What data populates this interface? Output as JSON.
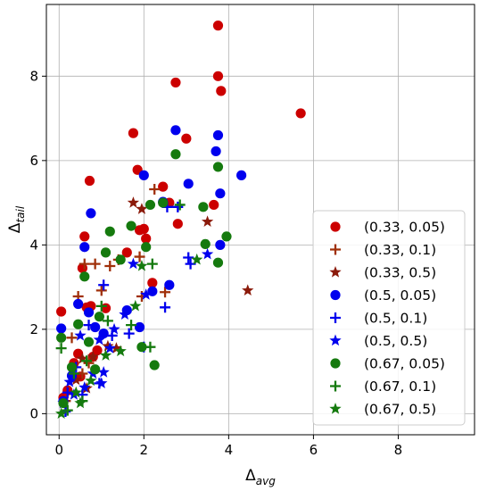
{
  "chart_data": {
    "type": "scatter",
    "xlabel": {
      "base": "Δ",
      "sub": "avg"
    },
    "ylabel": {
      "base": "Δ",
      "sub": "tail"
    },
    "xlim": [
      -0.3,
      9.8
    ],
    "ylim": [
      -0.5,
      9.7
    ],
    "xticks": [
      0,
      2,
      4,
      6,
      8
    ],
    "yticks": [
      0,
      2,
      4,
      6,
      8
    ],
    "grid": true,
    "legend_position": "lower-right",
    "series": [
      {
        "name": "(0.33, 0.05)",
        "color": "#cc0000",
        "marker": "circle",
        "points": [
          [
            0.05,
            2.42
          ],
          [
            0.1,
            0.38
          ],
          [
            0.2,
            0.55
          ],
          [
            0.35,
            1.2
          ],
          [
            0.45,
            1.42
          ],
          [
            0.5,
            0.88
          ],
          [
            0.55,
            3.45
          ],
          [
            0.6,
            4.2
          ],
          [
            0.65,
            2.52
          ],
          [
            0.72,
            5.52
          ],
          [
            0.75,
            2.55
          ],
          [
            0.8,
            1.35
          ],
          [
            0.9,
            1.5
          ],
          [
            1.1,
            2.5
          ],
          [
            1.6,
            3.82
          ],
          [
            1.75,
            6.65
          ],
          [
            1.85,
            5.78
          ],
          [
            1.9,
            4.35
          ],
          [
            2.0,
            4.38
          ],
          [
            2.05,
            4.15
          ],
          [
            2.2,
            3.1
          ],
          [
            2.45,
            5.38
          ],
          [
            2.6,
            5.0
          ],
          [
            2.75,
            7.85
          ],
          [
            2.8,
            4.5
          ],
          [
            3.0,
            6.52
          ],
          [
            3.65,
            4.95
          ],
          [
            3.75,
            8.0
          ],
          [
            3.75,
            9.2
          ],
          [
            3.82,
            7.65
          ],
          [
            5.7,
            7.12
          ]
        ]
      },
      {
        "name": "(0.33, 0.1)",
        "color": "#a0300a",
        "marker": "plus",
        "points": [
          [
            0.15,
            0.3
          ],
          [
            0.3,
            1.8
          ],
          [
            0.45,
            2.78
          ],
          [
            0.55,
            0.95
          ],
          [
            0.6,
            3.55
          ],
          [
            0.7,
            1.2
          ],
          [
            0.85,
            3.55
          ],
          [
            1.0,
            2.92
          ],
          [
            1.2,
            3.5
          ],
          [
            1.4,
            3.65
          ],
          [
            1.9,
            3.72
          ],
          [
            1.95,
            2.78
          ],
          [
            2.25,
            5.32
          ],
          [
            2.5,
            2.88
          ]
        ]
      },
      {
        "name": "(0.33, 0.5)",
        "color": "#8b1a0a",
        "marker": "star",
        "points": [
          [
            0.4,
            0.8
          ],
          [
            0.55,
            1.3
          ],
          [
            0.65,
            0.6
          ],
          [
            0.8,
            1.35
          ],
          [
            1.15,
            1.6
          ],
          [
            1.35,
            1.55
          ],
          [
            1.75,
            5.0
          ],
          [
            1.95,
            4.85
          ],
          [
            3.5,
            4.55
          ],
          [
            4.45,
            2.92
          ]
        ]
      },
      {
        "name": "(0.5, 0.05)",
        "color": "#0000ee",
        "marker": "circle",
        "points": [
          [
            0.1,
            0.3
          ],
          [
            0.05,
            2.02
          ],
          [
            0.3,
            0.9
          ],
          [
            0.45,
            2.6
          ],
          [
            0.6,
            3.95
          ],
          [
            0.7,
            2.4
          ],
          [
            0.75,
            4.75
          ],
          [
            0.85,
            2.05
          ],
          [
            1.05,
            1.9
          ],
          [
            1.6,
            2.45
          ],
          [
            1.9,
            2.05
          ],
          [
            2.0,
            5.65
          ],
          [
            2.2,
            2.9
          ],
          [
            2.45,
            5.02
          ],
          [
            2.6,
            3.05
          ],
          [
            2.75,
            6.72
          ],
          [
            3.05,
            5.45
          ],
          [
            3.7,
            6.22
          ],
          [
            3.75,
            6.6
          ],
          [
            3.8,
            5.22
          ],
          [
            3.8,
            4.0
          ],
          [
            4.3,
            5.65
          ]
        ]
      },
      {
        "name": "(0.5, 0.1)",
        "color": "#0000ee",
        "marker": "plus",
        "points": [
          [
            0.15,
            0.05
          ],
          [
            0.2,
            0.5
          ],
          [
            0.4,
            1.1
          ],
          [
            0.55,
            0.45
          ],
          [
            0.7,
            2.1
          ],
          [
            0.95,
            0.72
          ],
          [
            1.05,
            3.05
          ],
          [
            1.25,
            1.85
          ],
          [
            1.65,
            1.9
          ],
          [
            2.0,
            1.58
          ],
          [
            2.5,
            2.52
          ],
          [
            2.55,
            4.9
          ],
          [
            2.8,
            4.9
          ],
          [
            3.05,
            3.7
          ],
          [
            3.1,
            3.55
          ]
        ]
      },
      {
        "name": "(0.5, 0.5)",
        "color": "#0000ee",
        "marker": "star",
        "points": [
          [
            0.1,
            0.25
          ],
          [
            0.25,
            0.75
          ],
          [
            0.35,
            0.45
          ],
          [
            0.5,
            1.85
          ],
          [
            0.6,
            0.62
          ],
          [
            0.8,
            0.95
          ],
          [
            0.95,
            1.75
          ],
          [
            1.0,
            0.72
          ],
          [
            1.05,
            0.98
          ],
          [
            1.2,
            1.55
          ],
          [
            1.3,
            2.0
          ],
          [
            1.55,
            2.35
          ],
          [
            1.75,
            3.55
          ],
          [
            2.05,
            2.82
          ],
          [
            3.5,
            3.78
          ]
        ]
      },
      {
        "name": "(0.67, 0.05)",
        "color": "#157a0e",
        "marker": "circle",
        "points": [
          [
            0.05,
            1.8
          ],
          [
            0.1,
            0.25
          ],
          [
            0.3,
            1.1
          ],
          [
            0.45,
            2.12
          ],
          [
            0.6,
            3.25
          ],
          [
            0.7,
            1.7
          ],
          [
            0.85,
            1.05
          ],
          [
            0.95,
            2.3
          ],
          [
            1.1,
            3.82
          ],
          [
            1.2,
            4.32
          ],
          [
            1.45,
            3.65
          ],
          [
            1.7,
            4.45
          ],
          [
            1.95,
            1.58
          ],
          [
            2.05,
            3.95
          ],
          [
            2.15,
            4.95
          ],
          [
            2.25,
            1.15
          ],
          [
            2.75,
            6.15
          ],
          [
            3.4,
            4.9
          ],
          [
            3.45,
            4.02
          ],
          [
            3.75,
            5.85
          ],
          [
            3.95,
            4.2
          ],
          [
            3.75,
            3.58
          ],
          [
            2.45,
            5.0
          ]
        ]
      },
      {
        "name": "(0.67, 0.1)",
        "color": "#157a0e",
        "marker": "plus",
        "points": [
          [
            0.05,
            1.55
          ],
          [
            0.2,
            0.08
          ],
          [
            0.35,
            0.95
          ],
          [
            0.55,
            0.3
          ],
          [
            0.65,
            1.25
          ],
          [
            1.0,
            2.55
          ],
          [
            1.15,
            2.2
          ],
          [
            1.7,
            2.1
          ],
          [
            2.15,
            1.58
          ],
          [
            2.2,
            3.55
          ],
          [
            2.85,
            4.95
          ]
        ]
      },
      {
        "name": "(0.67, 0.5)",
        "color": "#157a0e",
        "marker": "star",
        "points": [
          [
            0.05,
            0.0
          ],
          [
            0.4,
            0.5
          ],
          [
            0.5,
            0.25
          ],
          [
            0.75,
            0.78
          ],
          [
            1.1,
            1.38
          ],
          [
            1.45,
            1.48
          ],
          [
            1.8,
            2.55
          ],
          [
            1.95,
            3.5
          ],
          [
            3.25,
            3.65
          ]
        ]
      }
    ]
  }
}
